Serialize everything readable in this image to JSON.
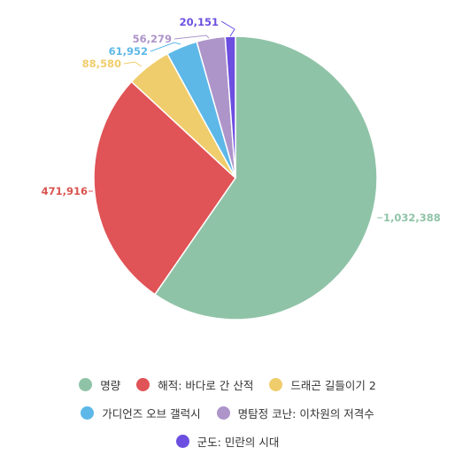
{
  "chart_data": {
    "type": "pie",
    "title": "",
    "slices": [
      {
        "label": "명량",
        "value": 1032388,
        "value_label": "1,032,388",
        "color": "#8fc3a7"
      },
      {
        "label": "해적: 바다로 간 산적",
        "value": 471916,
        "value_label": "471,916",
        "color": "#e05356"
      },
      {
        "label": "드래곤 길들이기 2",
        "value": 88580,
        "value_label": "88,580",
        "color": "#f0cd6c"
      },
      {
        "label": "가디언즈 오브 갤럭시",
        "value": 61952,
        "value_label": "61,952",
        "color": "#5db8e8"
      },
      {
        "label": "명탐정 코난: 이차원의 저격수",
        "value": 56279,
        "value_label": "56,279",
        "color": "#ad94c9"
      },
      {
        "label": "군도: 민란의 시대",
        "value": 20151,
        "value_label": "20,151",
        "color": "#6c4fe0"
      }
    ],
    "legend_position": "bottom"
  }
}
